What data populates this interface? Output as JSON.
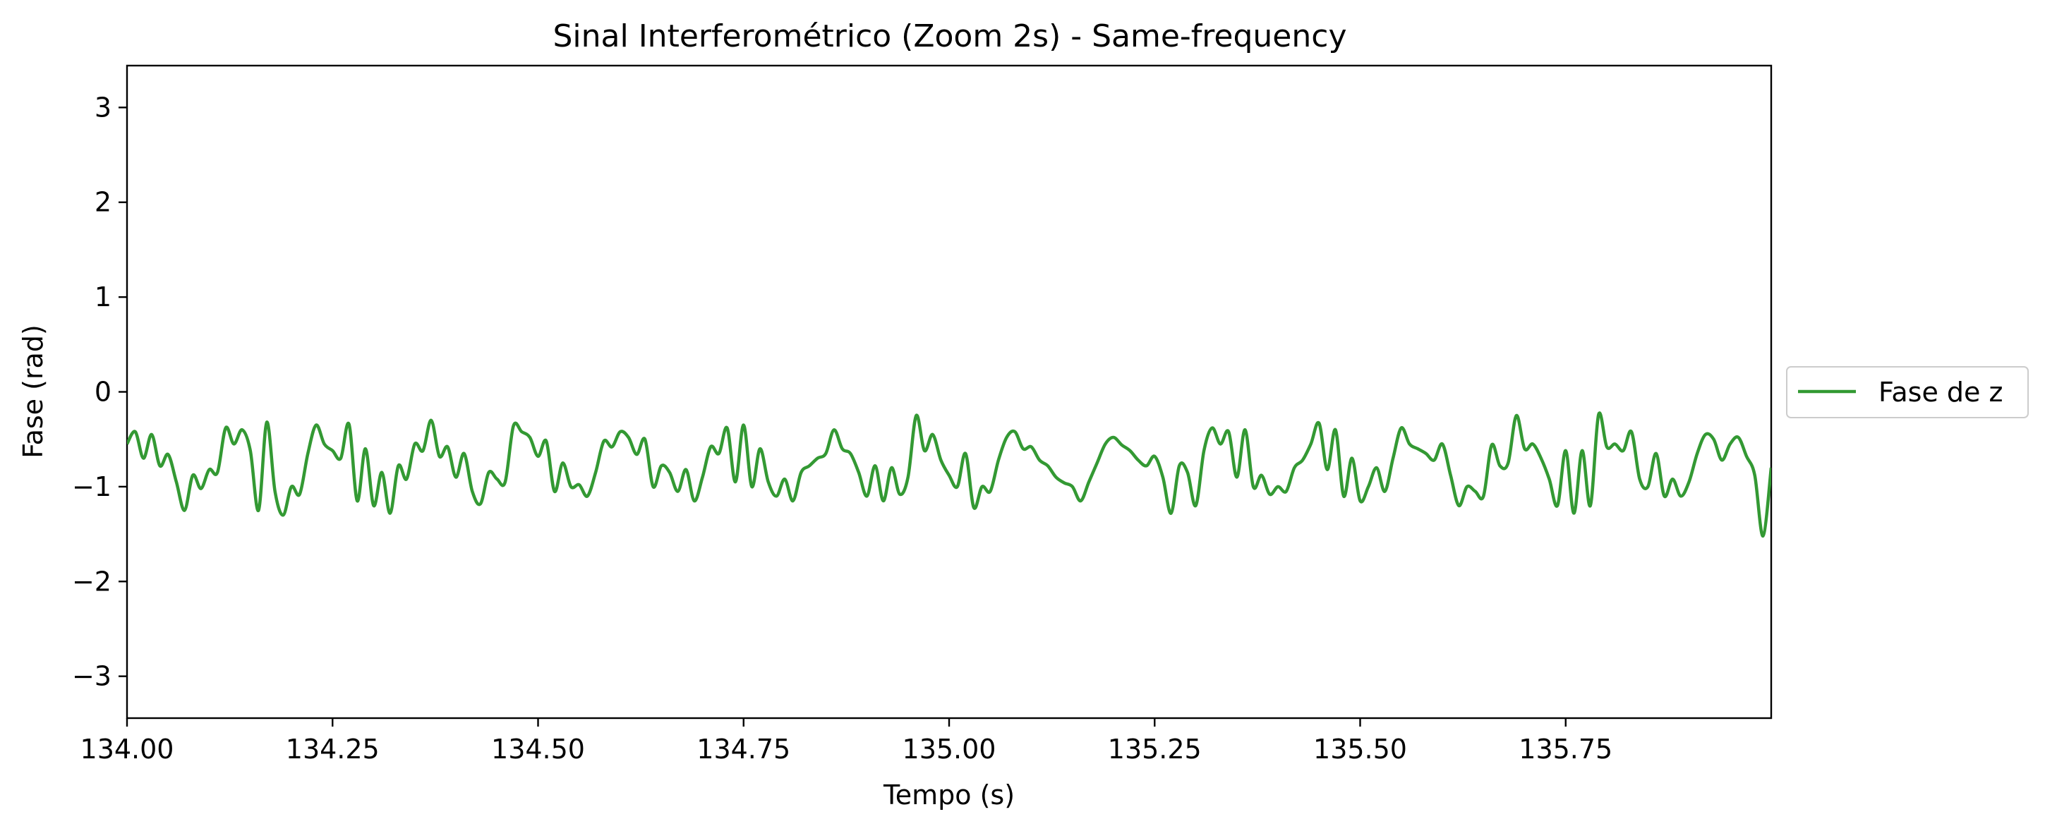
{
  "chart_data": {
    "type": "line",
    "title": "Sinal Interferométrico (Zoom 2s) - Same-frequency",
    "xlabel": "Tempo (s)",
    "ylabel": "Fase (rad)",
    "xlim": [
      134.0,
      136.0
    ],
    "ylim": [
      -3.4416,
      3.4416
    ],
    "xticks": [
      134.0,
      134.25,
      134.5,
      134.75,
      135.0,
      135.25,
      135.5,
      135.75
    ],
    "xtick_labels": [
      "134.00",
      "134.25",
      "134.50",
      "134.75",
      "135.00",
      "135.25",
      "135.50",
      "135.75"
    ],
    "yticks": [
      -3,
      -2,
      -1,
      0,
      1,
      2,
      3
    ],
    "ytick_labels": [
      "−3",
      "−2",
      "−1",
      "0",
      "1",
      "2",
      "3"
    ],
    "grid": false,
    "legend_position": "outside-right",
    "series": [
      {
        "name": "Fase de z",
        "color": "#339933",
        "x": [
          134.0,
          134.01,
          134.02,
          134.03,
          134.04,
          134.05,
          134.06,
          134.07,
          134.08,
          134.09,
          134.1,
          134.11,
          134.12,
          134.13,
          134.14,
          134.15,
          134.16,
          134.17,
          134.18,
          134.19,
          134.2,
          134.21,
          134.22,
          134.23,
          134.24,
          134.25,
          134.26,
          134.27,
          134.28,
          134.29,
          134.3,
          134.31,
          134.32,
          134.33,
          134.34,
          134.35,
          134.36,
          134.37,
          134.38,
          134.39,
          134.4,
          134.41,
          134.42,
          134.43,
          134.44,
          134.45,
          134.46,
          134.47,
          134.48,
          134.49,
          134.5,
          134.51,
          134.52,
          134.53,
          134.54,
          134.55,
          134.56,
          134.57,
          134.58,
          134.59,
          134.6,
          134.61,
          134.62,
          134.63,
          134.64,
          134.65,
          134.66,
          134.67,
          134.68,
          134.69,
          134.7,
          134.71,
          134.72,
          134.73,
          134.74,
          134.75,
          134.76,
          134.77,
          134.78,
          134.79,
          134.8,
          134.81,
          134.82,
          134.83,
          134.84,
          134.85,
          134.86,
          134.87,
          134.88,
          134.89,
          134.9,
          134.91,
          134.92,
          134.93,
          134.94,
          134.95,
          134.96,
          134.97,
          134.98,
          134.99,
          135.0,
          135.01,
          135.02,
          135.03,
          135.04,
          135.05,
          135.06,
          135.07,
          135.08,
          135.09,
          135.1,
          135.11,
          135.12,
          135.13,
          135.14,
          135.15,
          135.16,
          135.17,
          135.18,
          135.19,
          135.2,
          135.21,
          135.22,
          135.23,
          135.24,
          135.25,
          135.26,
          135.27,
          135.28,
          135.29,
          135.3,
          135.31,
          135.32,
          135.33,
          135.34,
          135.35,
          135.36,
          135.37,
          135.38,
          135.39,
          135.4,
          135.41,
          135.42,
          135.43,
          135.44,
          135.45,
          135.46,
          135.47,
          135.48,
          135.49,
          135.5,
          135.51,
          135.52,
          135.53,
          135.54,
          135.55,
          135.56,
          135.57,
          135.58,
          135.59,
          135.6,
          135.61,
          135.62,
          135.63,
          135.64,
          135.65,
          135.66,
          135.67,
          135.68,
          135.69,
          135.7,
          135.71,
          135.72,
          135.73,
          135.74,
          135.75,
          135.76,
          135.77,
          135.78,
          135.79,
          135.8,
          135.81,
          135.82,
          135.83,
          135.84,
          135.85,
          135.86,
          135.87,
          135.88,
          135.89,
          135.9,
          135.91,
          135.92,
          135.93,
          135.94,
          135.95,
          135.96,
          135.97,
          135.98,
          135.99,
          136.0
        ],
        "y": [
          -0.55,
          -0.42,
          -0.7,
          -0.45,
          -0.78,
          -0.66,
          -0.95,
          -1.25,
          -0.88,
          -1.02,
          -0.82,
          -0.85,
          -0.38,
          -0.55,
          -0.4,
          -0.62,
          -1.25,
          -0.32,
          -1.05,
          -1.3,
          -1.0,
          -1.08,
          -0.65,
          -0.35,
          -0.55,
          -0.62,
          -0.7,
          -0.34,
          -1.15,
          -0.6,
          -1.2,
          -0.85,
          -1.28,
          -0.78,
          -0.92,
          -0.55,
          -0.62,
          -0.3,
          -0.68,
          -0.58,
          -0.9,
          -0.65,
          -1.05,
          -1.18,
          -0.85,
          -0.92,
          -0.95,
          -0.36,
          -0.42,
          -0.48,
          -0.68,
          -0.52,
          -1.05,
          -0.75,
          -1.0,
          -0.98,
          -1.1,
          -0.85,
          -0.52,
          -0.58,
          -0.42,
          -0.48,
          -0.66,
          -0.5,
          -1.0,
          -0.78,
          -0.85,
          -1.05,
          -0.82,
          -1.15,
          -0.9,
          -0.58,
          -0.65,
          -0.38,
          -0.95,
          -0.35,
          -1.0,
          -0.6,
          -0.95,
          -1.1,
          -0.92,
          -1.15,
          -0.85,
          -0.78,
          -0.7,
          -0.65,
          -0.4,
          -0.6,
          -0.65,
          -0.85,
          -1.1,
          -0.78,
          -1.15,
          -0.8,
          -1.08,
          -0.9,
          -0.25,
          -0.62,
          -0.45,
          -0.72,
          -0.88,
          -1.0,
          -0.65,
          -1.22,
          -1.0,
          -1.05,
          -0.72,
          -0.48,
          -0.42,
          -0.6,
          -0.58,
          -0.72,
          -0.78,
          -0.9,
          -0.96,
          -1.0,
          -1.15,
          -0.95,
          -0.75,
          -0.55,
          -0.48,
          -0.56,
          -0.62,
          -0.72,
          -0.78,
          -0.68,
          -0.9,
          -1.28,
          -0.78,
          -0.85,
          -1.2,
          -0.62,
          -0.38,
          -0.55,
          -0.42,
          -0.9,
          -0.4,
          -1.0,
          -0.88,
          -1.08,
          -1.0,
          -1.05,
          -0.8,
          -0.72,
          -0.55,
          -0.33,
          -0.82,
          -0.4,
          -1.1,
          -0.7,
          -1.15,
          -1.0,
          -0.8,
          -1.05,
          -0.7,
          -0.38,
          -0.55,
          -0.6,
          -0.65,
          -0.72,
          -0.55,
          -0.88,
          -1.2,
          -1.0,
          -1.05,
          -1.1,
          -0.56,
          -0.78,
          -0.75,
          -0.25,
          -0.6,
          -0.55,
          -0.7,
          -0.92,
          -1.2,
          -0.62,
          -1.28,
          -0.62,
          -1.2,
          -0.24,
          -0.58,
          -0.55,
          -0.62,
          -0.42,
          -0.92,
          -1.0,
          -0.65,
          -1.1,
          -0.92,
          -1.1,
          -0.95,
          -0.65,
          -0.45,
          -0.5,
          -0.72,
          -0.55,
          -0.48,
          -0.68,
          -0.88,
          -1.52,
          -0.8
        ]
      }
    ]
  }
}
